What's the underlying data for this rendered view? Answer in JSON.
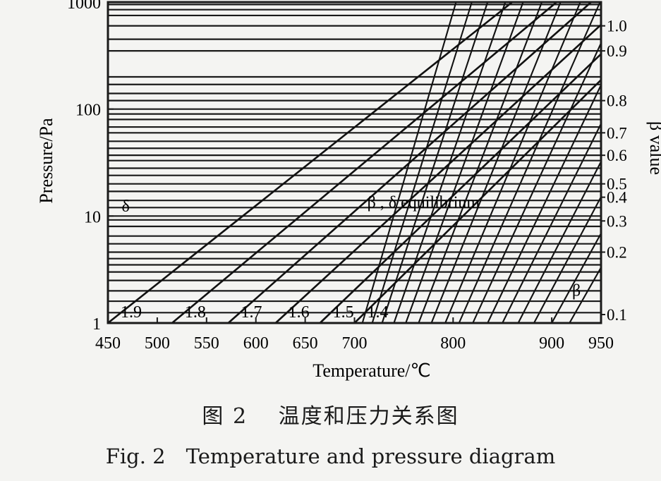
{
  "chart_data": {
    "type": "line",
    "title": "",
    "xlabel": "Temperature/℃",
    "ylabel": "Pressure/Pa",
    "y2label": "β value",
    "xlim": [
      450,
      950
    ],
    "ylim": [
      1,
      1000
    ],
    "yscale": "log",
    "x_tick_labels": [
      "450",
      "500",
      "550",
      "600",
      "650",
      "700",
      "800",
      "900",
      "950"
    ],
    "x_tick_values": [
      450,
      500,
      550,
      600,
      650,
      700,
      800,
      900,
      950
    ],
    "y_tick_labels": [
      "1",
      "10",
      "100",
      "1000"
    ],
    "y_tick_values": [
      1,
      10,
      100,
      1000
    ],
    "beta_labels": [
      {
        "label": "1.0",
        "pressure": 600
      },
      {
        "label": "0.9",
        "pressure": 350
      },
      {
        "label": "0.8",
        "pressure": 120
      },
      {
        "label": "0.7",
        "pressure": 60
      },
      {
        "label": "0.6",
        "pressure": 37
      },
      {
        "label": "0.5",
        "pressure": 20
      },
      {
        "label": "0.4",
        "pressure": 15
      },
      {
        "label": "0.3",
        "pressure": 9
      },
      {
        "label": "0.2",
        "pressure": 4.6
      },
      {
        "label": "0.1",
        "pressure": 1.2
      }
    ],
    "isobar_pressures": [
      1.25,
      1.6,
      2,
      2.5,
      3,
      3.5,
      4,
      4.6,
      5.5,
      6.5,
      8,
      9.2,
      10,
      12,
      14,
      17,
      20,
      24,
      28,
      33,
      37,
      43,
      50,
      60,
      68,
      80,
      90,
      100,
      120,
      140,
      170,
      200,
      350,
      450,
      600,
      750,
      850,
      950
    ],
    "diagonal_series": [
      {
        "name": "1.9",
        "x": [
          450,
          860
        ],
        "y": [
          1,
          1000
        ]
      },
      {
        "name": "1.8",
        "x": [
          515,
          905
        ],
        "y": [
          1,
          1000
        ]
      },
      {
        "name": "1.7",
        "x": [
          572,
          940
        ],
        "y": [
          1,
          1000
        ]
      },
      {
        "name": "1.6",
        "x": [
          620,
          975
        ],
        "y": [
          1,
          1000
        ]
      },
      {
        "name": "1.5",
        "x": [
          665,
          1005
        ],
        "y": [
          1,
          1000
        ]
      },
      {
        "name": "1.4",
        "x": [
          700,
          1030
        ],
        "y": [
          1,
          1000
        ]
      }
    ],
    "steep_lines_x_at_p1": [
      708,
      718,
      728,
      740,
      752,
      765,
      778,
      792,
      806,
      820,
      835,
      850,
      866,
      882,
      900,
      918
    ],
    "annotations": [
      {
        "text": "δ",
        "x": 468,
        "y": 11
      },
      {
        "text": "β , δ equilibrium",
        "x": 770,
        "y": 12
      },
      {
        "text": "β",
        "x": 925,
        "y": 1.8
      }
    ]
  },
  "captions": {
    "chinese": "图 2　 温度和压力关系图",
    "english": "Fig. 2　Temperature and pressure diagram"
  }
}
